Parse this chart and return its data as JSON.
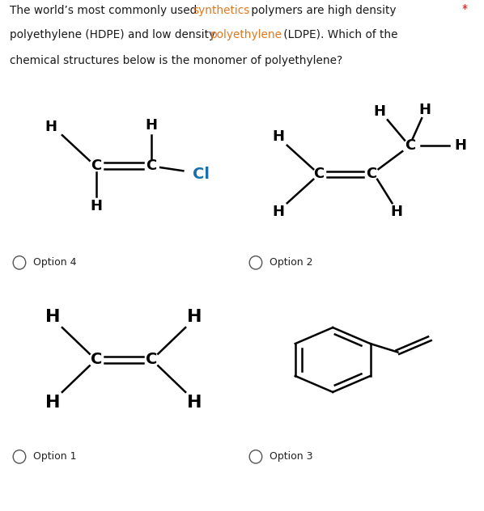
{
  "title_color_normal": "#1a1a1a",
  "title_color_highlight": "#e07820",
  "asterisk_color": "#cc0000",
  "bg_color": "#ffffff",
  "box_border": "#cccccc",
  "option_labels": [
    "Option 4",
    "Option 2",
    "Option 1",
    "Option 3"
  ],
  "option_circle_color": "#555555",
  "line1_parts": [
    [
      "The world’s most commonly used ",
      "#1a1a1a"
    ],
    [
      "synthetics",
      "#e07820"
    ],
    [
      " polymers are high density",
      "#1a1a1a"
    ]
  ],
  "line2_parts": [
    [
      "polyethylene (HDPE) and low density ",
      "#1a1a1a"
    ],
    [
      "polyethylene",
      "#e07820"
    ],
    [
      " (LDPE). Which of the",
      "#1a1a1a"
    ]
  ],
  "line3_parts": [
    [
      "chemical structures below is the monomer of polyethylene?",
      "#1a1a1a"
    ]
  ]
}
